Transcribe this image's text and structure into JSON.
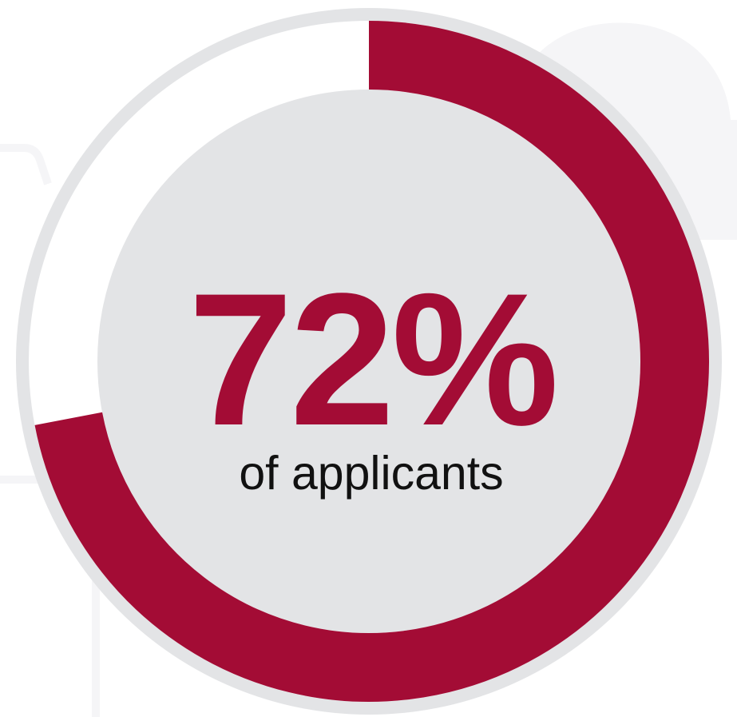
{
  "chart_data": {
    "type": "pie",
    "variant": "donut-progress",
    "value": 72,
    "max": 100,
    "value_label": "72%",
    "caption": "of applicants",
    "colors": {
      "progress": "#a30c35",
      "ring_border": "#e3e4e6",
      "track": "#ffffff",
      "inner": "#e3e4e6",
      "value_text": "#a30c35",
      "caption_text": "#111111",
      "background": "#ffffff",
      "background_decor": "#f5f5f7"
    }
  }
}
